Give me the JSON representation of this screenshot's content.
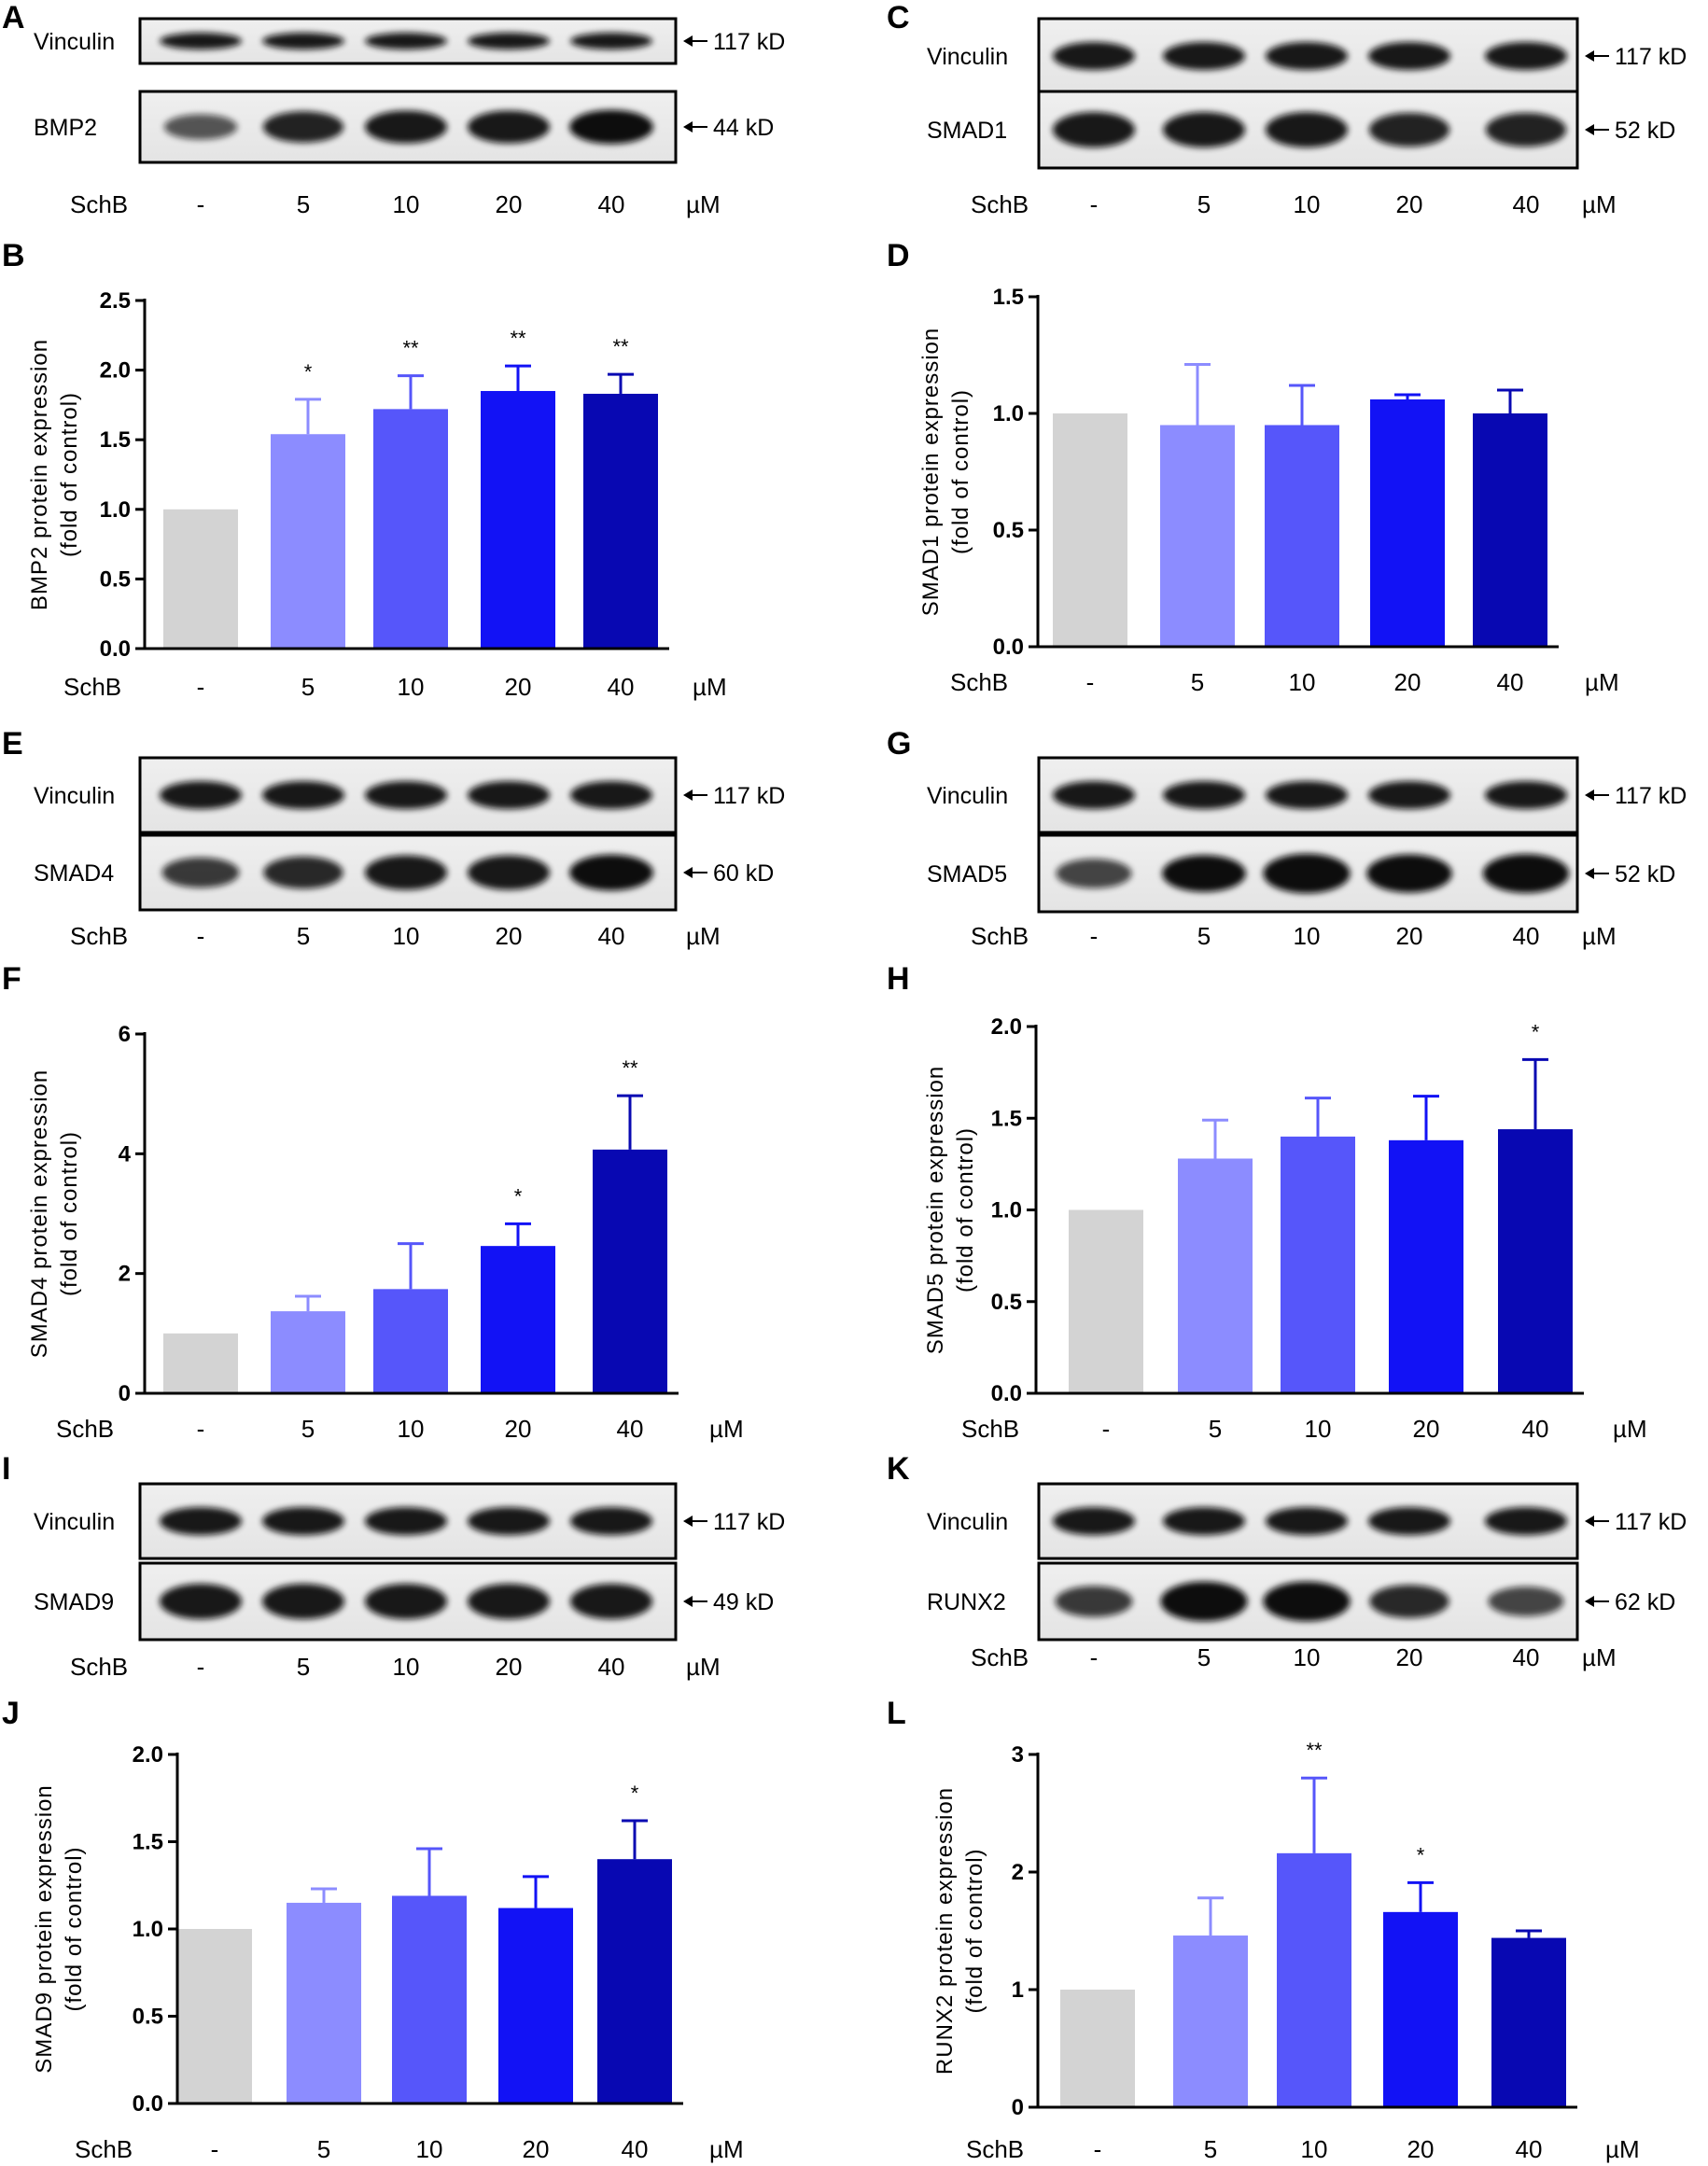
{
  "figure": {
    "lane_axis_label": "SchB",
    "lanes": [
      "-",
      "5",
      "10",
      "20",
      "40"
    ],
    "unit": "µM"
  },
  "blots": [
    {
      "panel": "A",
      "rows": [
        {
          "protein": "Vinculin",
          "kd": "117 kD"
        },
        {
          "protein": "BMP2",
          "kd": "44 kD"
        }
      ]
    },
    {
      "panel": "C",
      "rows": [
        {
          "protein": "Vinculin",
          "kd": "117 kD"
        },
        {
          "protein": "SMAD1",
          "kd": "52 kD"
        }
      ]
    },
    {
      "panel": "E",
      "rows": [
        {
          "protein": "Vinculin",
          "kd": "117 kD"
        },
        {
          "protein": "SMAD4",
          "kd": "60 kD"
        }
      ]
    },
    {
      "panel": "G",
      "rows": [
        {
          "protein": "Vinculin",
          "kd": "117 kD"
        },
        {
          "protein": "SMAD5",
          "kd": "52 kD"
        }
      ]
    },
    {
      "panel": "I",
      "rows": [
        {
          "protein": "Vinculin",
          "kd": "117 kD"
        },
        {
          "protein": "SMAD9",
          "kd": "49 kD"
        }
      ]
    },
    {
      "panel": "K",
      "rows": [
        {
          "protein": "Vinculin",
          "kd": "117 kD"
        },
        {
          "protein": "RUNX2",
          "kd": "62 kD"
        }
      ]
    }
  ],
  "colors": [
    "#d3d3d3",
    "#8c8cff",
    "#5656fa",
    "#1212f5",
    "#0808b2"
  ],
  "chart_data": [
    {
      "panel": "B",
      "type": "bar",
      "ylabel_line1": "BMP2 protein   expression",
      "ylabel_line2": "(fold of  control)",
      "categories": [
        "-",
        "5",
        "10",
        "20",
        "40"
      ],
      "values": [
        1.0,
        1.54,
        1.72,
        1.85,
        1.83
      ],
      "errors": [
        0,
        0.25,
        0.24,
        0.18,
        0.14
      ],
      "significance": [
        "",
        "*",
        "**",
        "**",
        "**"
      ],
      "ylim": [
        0,
        2.5
      ],
      "yticks": [
        "0.0",
        "0.5",
        "1.0",
        "1.5",
        "2.0",
        "2.5"
      ],
      "xlabel": "SchB",
      "unit": "µM"
    },
    {
      "panel": "D",
      "type": "bar",
      "ylabel_line1": "SMAD1 protein expression",
      "ylabel_line2": "(fold of  control)",
      "categories": [
        "-",
        "5",
        "10",
        "20",
        "40"
      ],
      "values": [
        1.0,
        0.95,
        0.95,
        1.06,
        1.0
      ],
      "errors": [
        0,
        0.26,
        0.17,
        0.02,
        0.1
      ],
      "significance": [
        "",
        "",
        "",
        "",
        ""
      ],
      "ylim": [
        0,
        1.5
      ],
      "yticks": [
        "0.0",
        "0.5",
        "1.0",
        "1.5"
      ],
      "xlabel": "SchB",
      "unit": "µM"
    },
    {
      "panel": "F",
      "type": "bar",
      "ylabel_line1": "SMAD4 protein   expression",
      "ylabel_line2": "(fold of  control)",
      "categories": [
        "-",
        "5",
        "10",
        "20",
        "40"
      ],
      "values": [
        1.0,
        1.37,
        1.74,
        2.46,
        4.07
      ],
      "errors": [
        0,
        0.25,
        0.76,
        0.37,
        0.9
      ],
      "significance": [
        "",
        "",
        "",
        "*",
        "**"
      ],
      "ylim": [
        0,
        6
      ],
      "yticks": [
        "0",
        "2",
        "4",
        "6"
      ],
      "xlabel": "SchB",
      "unit": "µM"
    },
    {
      "panel": "H",
      "type": "bar",
      "ylabel_line1": "SMAD5 protein expression",
      "ylabel_line2": "(fold of  control)",
      "categories": [
        "-",
        "5",
        "10",
        "20",
        "40"
      ],
      "values": [
        1.0,
        1.28,
        1.4,
        1.38,
        1.44
      ],
      "errors": [
        0,
        0.21,
        0.21,
        0.24,
        0.38
      ],
      "significance": [
        "",
        "",
        "",
        "",
        "*"
      ],
      "ylim": [
        0,
        2.0
      ],
      "yticks": [
        "0.0",
        "0.5",
        "1.0",
        "1.5",
        "2.0"
      ],
      "xlabel": "SchB",
      "unit": "µM"
    },
    {
      "panel": "J",
      "type": "bar",
      "ylabel_line1": "SMAD9 protein expression",
      "ylabel_line2": "(fold of  control)",
      "categories": [
        "-",
        "5",
        "10",
        "20",
        "40"
      ],
      "values": [
        1.0,
        1.15,
        1.19,
        1.12,
        1.4
      ],
      "errors": [
        0,
        0.08,
        0.27,
        0.18,
        0.22
      ],
      "significance": [
        "",
        "",
        "",
        "",
        "*"
      ],
      "ylim": [
        0,
        2.0
      ],
      "yticks": [
        "0.0",
        "0.5",
        "1.0",
        "1.5",
        "2.0"
      ],
      "xlabel": "SchB",
      "unit": "µM"
    },
    {
      "panel": "L",
      "type": "bar",
      "ylabel_line1": "RUNX2 protein   expression",
      "ylabel_line2": "(fold of  control)",
      "categories": [
        "-",
        "5",
        "10",
        "20",
        "40"
      ],
      "values": [
        1.0,
        1.46,
        2.16,
        1.66,
        1.44
      ],
      "errors": [
        0,
        0.32,
        0.64,
        0.25,
        0.06
      ],
      "significance": [
        "",
        "",
        "**",
        "*",
        ""
      ],
      "ylim": [
        0,
        3
      ],
      "yticks": [
        "0",
        "1",
        "2",
        "3"
      ],
      "xlabel": "SchB",
      "unit": "µM"
    }
  ]
}
